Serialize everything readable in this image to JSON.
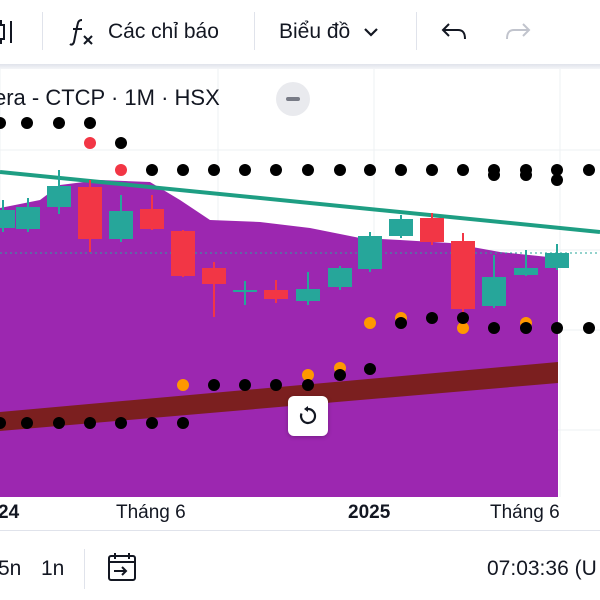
{
  "toolbar": {
    "indicators_label": "Các chỉ báo",
    "chart_type_label": "Biểu đồ",
    "icons": [
      "candles-icon",
      "fx-icon",
      "chevron-down-icon",
      "undo-icon",
      "redo-icon"
    ]
  },
  "legend": {
    "title": "era - CTCP · 1M · HSX"
  },
  "x_axis": {
    "labels": [
      "24",
      "Tháng 6",
      "2025",
      "Tháng 6"
    ]
  },
  "bottom_bar": {
    "ranges": [
      "5n",
      "1n"
    ],
    "time": "07:03:36 (U"
  },
  "colors": {
    "bull": "#26a69a",
    "bear": "#f23645",
    "area": "#9c27b0",
    "band": "#7b1f1f",
    "trend": "#1e9e83",
    "orange_dot": "#ff9800",
    "black_dot": "#000000"
  },
  "chart_data": {
    "type": "candlestick",
    "candles": [
      {
        "dir": "bull"
      },
      {
        "dir": "bull"
      },
      {
        "dir": "bull"
      },
      {
        "dir": "bear"
      },
      {
        "dir": "bull"
      },
      {
        "dir": "bear"
      },
      {
        "dir": "bear"
      },
      {
        "dir": "bear"
      },
      {
        "dir": "bull"
      },
      {
        "dir": "bear"
      },
      {
        "dir": "bull"
      },
      {
        "dir": "bull"
      },
      {
        "dir": "bull"
      },
      {
        "dir": "bull"
      },
      {
        "dir": "bear"
      },
      {
        "dir": "bear"
      },
      {
        "dir": "bull"
      },
      {
        "dir": "bull"
      },
      {
        "dir": "bull"
      }
    ]
  }
}
